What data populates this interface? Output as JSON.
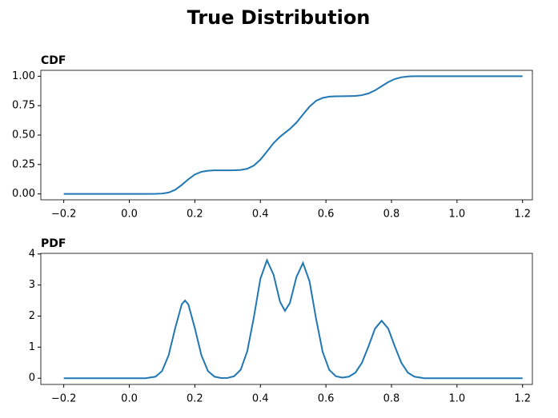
{
  "title": "True Distribution",
  "chart_data": [
    {
      "type": "line",
      "title": "CDF",
      "color": "#1f77b4",
      "x": [
        -0.2,
        -0.1,
        0,
        0.05,
        0.08,
        0.1,
        0.12,
        0.14,
        0.16,
        0.17,
        0.18,
        0.2,
        0.22,
        0.24,
        0.26,
        0.28,
        0.3,
        0.32,
        0.34,
        0.36,
        0.38,
        0.4,
        0.42,
        0.44,
        0.46,
        0.475,
        0.49,
        0.51,
        0.53,
        0.55,
        0.57,
        0.59,
        0.61,
        0.63,
        0.65,
        0.67,
        0.69,
        0.71,
        0.73,
        0.75,
        0.77,
        0.79,
        0.81,
        0.83,
        0.85,
        0.87,
        0.9,
        1.0,
        1.1,
        1.2
      ],
      "values": [
        0,
        0,
        0,
        0,
        0.0005,
        0.003,
        0.012,
        0.035,
        0.076,
        0.1,
        0.124,
        0.165,
        0.188,
        0.197,
        0.2,
        0.2,
        0.2,
        0.201,
        0.204,
        0.214,
        0.241,
        0.291,
        0.36,
        0.431,
        0.486,
        0.519,
        0.552,
        0.606,
        0.675,
        0.742,
        0.791,
        0.816,
        0.827,
        0.829,
        0.83,
        0.831,
        0.833,
        0.839,
        0.854,
        0.88,
        0.915,
        0.95,
        0.976,
        0.991,
        0.998,
        1.0,
        1.0,
        1.0,
        1.0,
        1.0
      ],
      "xlim": [
        -0.27,
        1.23
      ],
      "xticks": [
        {
          "value": -0.2,
          "label": "−0.2"
        },
        {
          "value": 0,
          "label": "0.0"
        },
        0.2,
        0.4,
        0.6,
        0.8,
        {
          "value": 1,
          "label": "1.0"
        },
        1.2
      ],
      "ylim": [
        -0.05,
        1.05
      ],
      "yticks": [
        {
          "value": 0,
          "label": "0.00"
        },
        0.25,
        {
          "value": 0.5,
          "label": "0.50"
        },
        0.75,
        {
          "value": 1,
          "label": "1.00"
        }
      ]
    },
    {
      "type": "line",
      "title": "PDF",
      "color": "#1f77b4",
      "x": [
        -0.2,
        -0.1,
        0,
        0.05,
        0.08,
        0.1,
        0.12,
        0.14,
        0.16,
        0.17,
        0.18,
        0.2,
        0.22,
        0.24,
        0.26,
        0.28,
        0.3,
        0.32,
        0.34,
        0.36,
        0.38,
        0.4,
        0.42,
        0.44,
        0.46,
        0.475,
        0.49,
        0.51,
        0.53,
        0.55,
        0.57,
        0.59,
        0.61,
        0.63,
        0.65,
        0.67,
        0.69,
        0.71,
        0.73,
        0.75,
        0.77,
        0.79,
        0.81,
        0.83,
        0.85,
        0.87,
        0.9,
        1.0,
        1.1,
        1.2
      ],
      "values": [
        0,
        0,
        0,
        0,
        0.05,
        0.23,
        0.74,
        1.61,
        2.38,
        2.5,
        2.38,
        1.61,
        0.74,
        0.23,
        0.05,
        0.007,
        0.01,
        0.064,
        0.275,
        0.87,
        1.96,
        3.2,
        3.8,
        3.34,
        2.46,
        2.17,
        2.42,
        3.26,
        3.71,
        3.12,
        1.91,
        0.85,
        0.27,
        0.064,
        0.02,
        0.05,
        0.18,
        0.5,
        1.03,
        1.6,
        1.85,
        1.6,
        1.03,
        0.5,
        0.18,
        0.05,
        0,
        0,
        0,
        0
      ],
      "xlim": [
        -0.27,
        1.23
      ],
      "xticks": [
        {
          "value": -0.2,
          "label": "−0.2"
        },
        {
          "value": 0,
          "label": "0.0"
        },
        0.2,
        0.4,
        0.6,
        0.8,
        {
          "value": 1,
          "label": "1.0"
        },
        1.2
      ],
      "ylim": [
        -0.2,
        4.02
      ],
      "yticks": [
        0,
        1,
        2,
        3,
        4
      ]
    }
  ]
}
